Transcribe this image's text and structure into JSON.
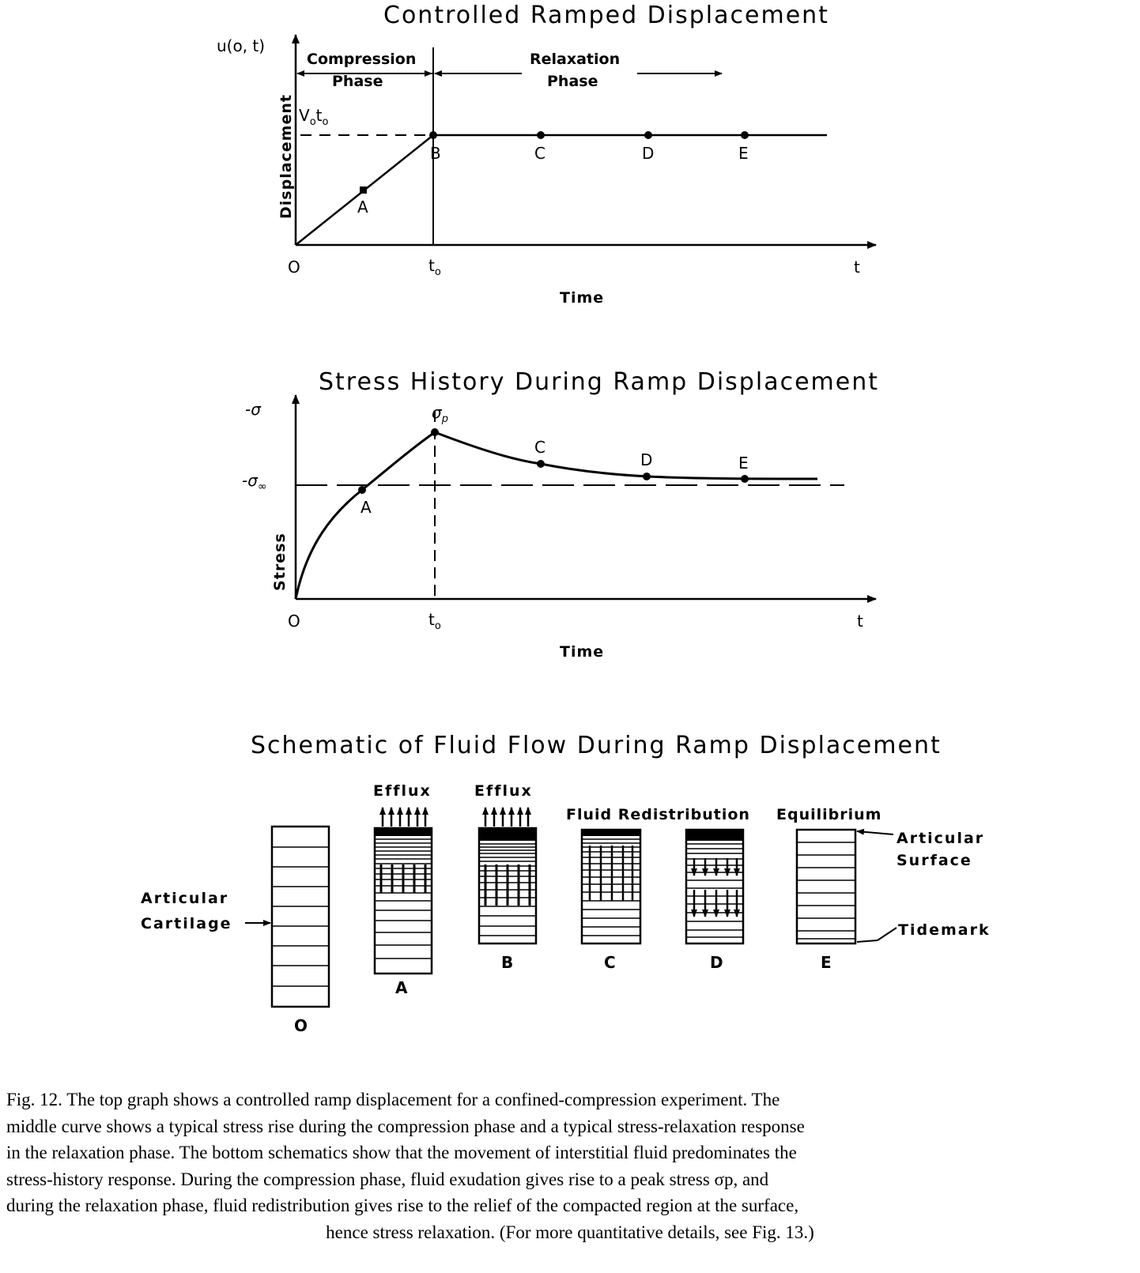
{
  "chart1": {
    "title": "Controlled Ramped Displacement",
    "y_var": "u(o, t)",
    "y_label": "Displacement",
    "x_label": "Time",
    "origin": "O",
    "t0": "t",
    "t0_sub": "o",
    "t_end": "t",
    "level": "V",
    "level_sub1": "o",
    "level_t": "t",
    "level_sub2": "o",
    "phase1_line1": "Compression",
    "phase1_line2": "Phase",
    "phase2_line1": "Relaxation",
    "phase2_line2": "Phase",
    "points": [
      "A",
      "B",
      "C",
      "D",
      "E"
    ]
  },
  "chart2": {
    "title": "Stress History During Ramp Displacement",
    "y_label": "Stress",
    "y_top": "-σ",
    "y_mid": "-σ",
    "y_mid_sub": "∞",
    "peak": "σ",
    "peak_sub": "p",
    "x_label": "Time",
    "origin": "O",
    "t0": "t",
    "t0_sub": "o",
    "t_end": "t",
    "points": [
      "A",
      "C",
      "D",
      "E"
    ]
  },
  "schematic": {
    "title": "Schematic of Fluid Flow During Ramp Displacement",
    "articular_cartilage_line1": "Articular",
    "articular_cartilage_line2": "Cartilage",
    "efflux_a": "Efflux",
    "efflux_b": "Efflux",
    "fluid_redistribution": "Fluid Redistribution",
    "equilibrium": "Equilibrium",
    "articular_surface_line1": "Articular",
    "articular_surface_line2": "Surface",
    "tidemark": "Tidemark",
    "columns": [
      "O",
      "A",
      "B",
      "C",
      "D",
      "E"
    ]
  },
  "caption": {
    "lines": [
      "Fig. 12. The top graph shows a controlled ramp displacement for a confined-compression experiment. The",
      "middle curve shows a typical stress rise during the compression phase and a typical stress-relaxation response",
      "in the relaxation phase. The bottom schematics show that the movement of interstitial fluid predominates the",
      "stress-history response. During the compression phase, fluid exudation gives rise to a peak stress σp, and",
      "during the relaxation phase, fluid redistribution gives rise to the relief of the compacted region at the surface,"
    ],
    "last_line": "hence stress relaxation. (For more quantitative details, see Fig. 13.)"
  }
}
